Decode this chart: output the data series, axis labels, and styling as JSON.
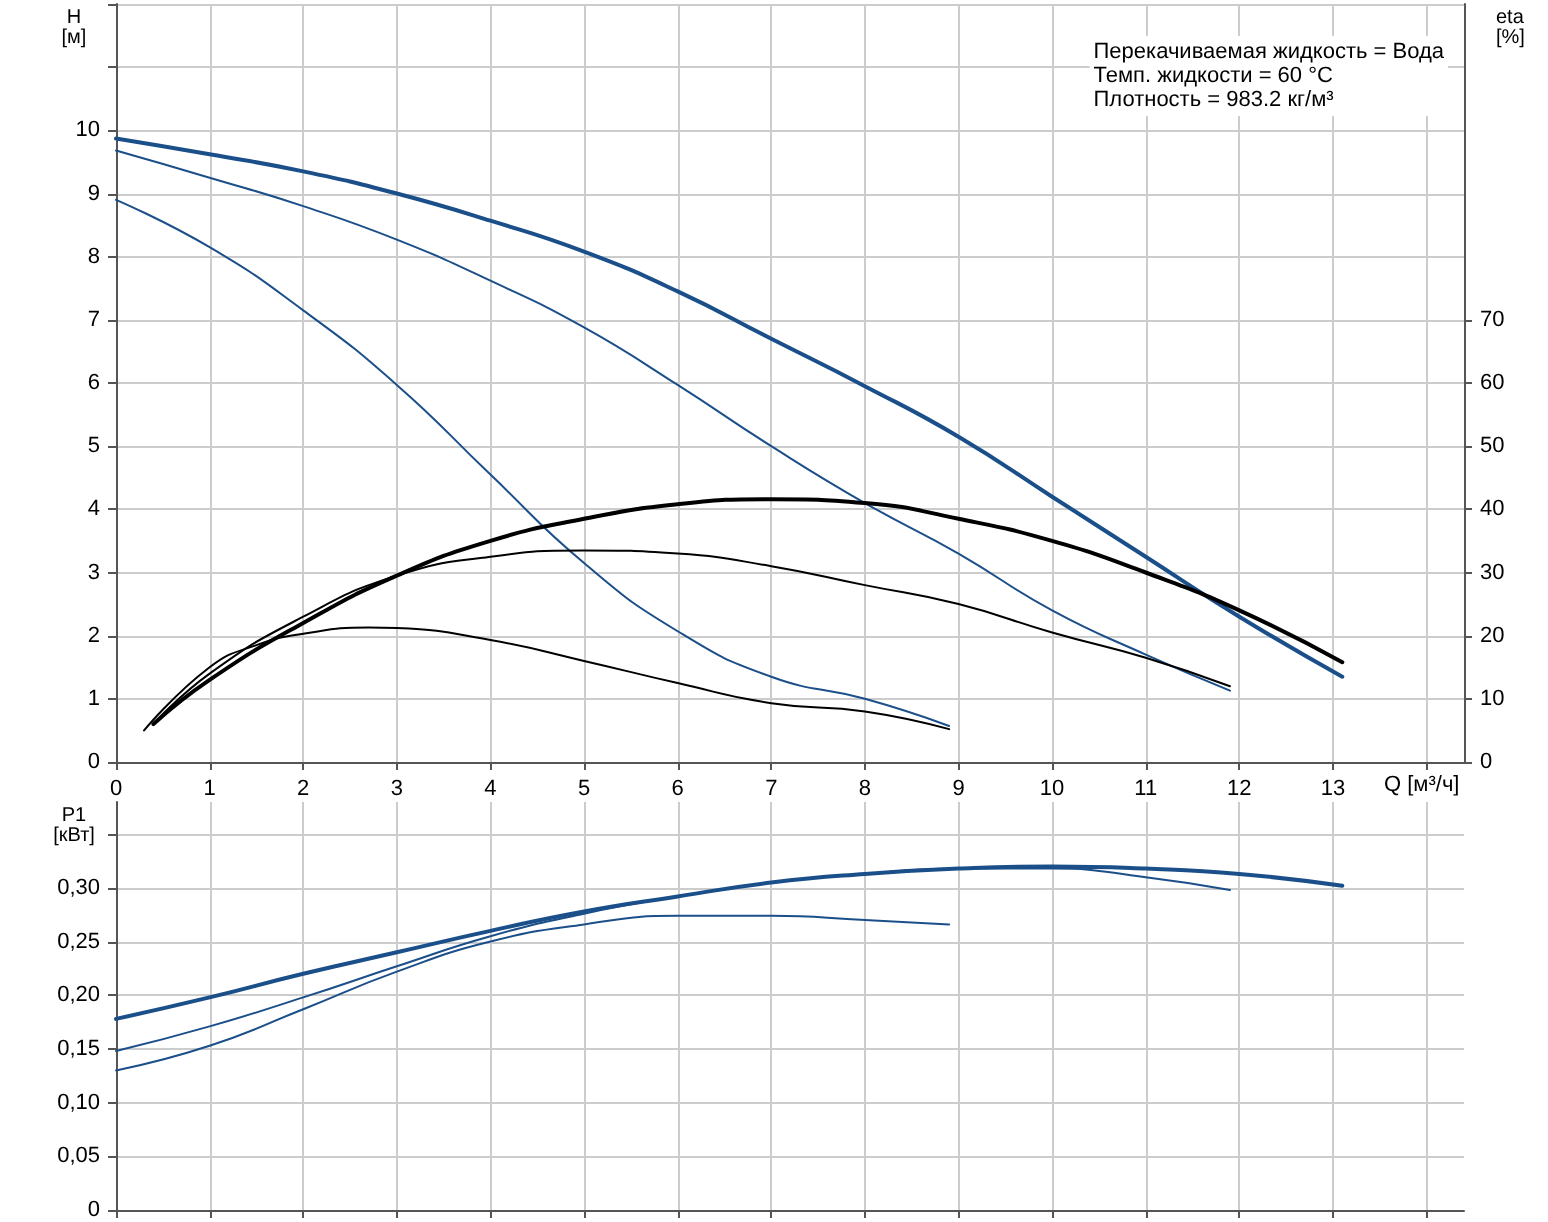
{
  "chart_data": [
    {
      "type": "line",
      "xlabel": "Q [м³/ч]",
      "ylabel": "H [м]",
      "y2label": "eta [%]",
      "annotations": [
        "Перекачиваемая жидкость = Вода",
        "Темп. жидкости = 60 °C",
        "Плотность = 983.2 кг/м³"
      ],
      "xlim": [
        0,
        14.4
      ],
      "xticks": [
        0,
        1,
        2,
        3,
        4,
        5,
        6,
        7,
        8,
        9,
        10,
        11,
        12,
        13,
        {
          "value": 14,
          "label": null
        }
      ],
      "ylim": [
        0,
        12
      ],
      "yticks": [
        0,
        1,
        2,
        3,
        4,
        5,
        6,
        7,
        8,
        9,
        10,
        {
          "value": 11,
          "label": null
        },
        {
          "value": 12,
          "label": null
        }
      ],
      "y2lim": [
        0,
        120
      ],
      "y2ticks": [
        0,
        10,
        20,
        30,
        40,
        50,
        60,
        70
      ],
      "grid": true,
      "marker": "none",
      "line_style": "solid",
      "series": [
        {
          "color": "#1b4f8a",
          "x": [
            0,
            1,
            2,
            3,
            4,
            5,
            6,
            7,
            8,
            9,
            10,
            11,
            12,
            13.1
          ],
          "values": [
            9.87,
            9.62,
            9.35,
            9.0,
            8.57,
            8.08,
            7.45,
            6.7,
            5.95,
            5.15,
            4.2,
            3.25,
            2.3,
            1.35
          ]
        },
        {
          "color": "#1b4f8a",
          "x": [
            0,
            1,
            2,
            3,
            4,
            5,
            6,
            7,
            8,
            9,
            10,
            11,
            11.9
          ],
          "values": [
            9.68,
            9.25,
            8.8,
            8.27,
            7.62,
            6.88,
            5.97,
            5.0,
            4.1,
            3.3,
            2.4,
            1.7,
            1.13
          ]
        },
        {
          "color": "#1b4f8a",
          "x": [
            0,
            1,
            2,
            3,
            4,
            5,
            6,
            7,
            8,
            8.9
          ],
          "values": [
            8.9,
            8.15,
            7.15,
            5.97,
            4.55,
            3.15,
            2.07,
            1.35,
            1.0,
            0.57
          ]
        },
        {
          "color": "#000000",
          "axis": "y2",
          "x": [
            0.4,
            1,
            2,
            3,
            4,
            5,
            6,
            7,
            8,
            9,
            10,
            11,
            12,
            13.1
          ],
          "values": [
            6,
            13,
            22,
            29.5,
            35,
            38.5,
            40.8,
            41.6,
            41,
            38.5,
            35,
            30,
            24,
            15.8
          ]
        },
        {
          "color": "#000000",
          "axis": "y2",
          "x": [
            0.4,
            1,
            2,
            3,
            4,
            5,
            6,
            7,
            8,
            9,
            10,
            11,
            11.9
          ],
          "values": [
            6,
            14,
            23,
            29.5,
            32.5,
            33.5,
            33,
            31,
            28,
            25,
            20.5,
            16.5,
            12
          ]
        },
        {
          "color": "#000000",
          "axis": "y2",
          "x": [
            0.3,
            1,
            1.5,
            2,
            2.7,
            3,
            4,
            5,
            6,
            7,
            8,
            8.9
          ],
          "values": [
            5,
            15,
            18.5,
            20.3,
            21.3,
            21.2,
            19.3,
            16,
            12.5,
            9.3,
            8,
            5.2
          ]
        }
      ]
    },
    {
      "type": "line",
      "ylabel": "P1 [кВт]",
      "tick_labels": "y",
      "xlim": [
        0,
        14.4
      ],
      "xticks": [
        0,
        1,
        2,
        3,
        4,
        5,
        6,
        7,
        8,
        9,
        10,
        11,
        12,
        13,
        14
      ],
      "ylim": [
        0,
        0.38
      ],
      "yticks": [
        0,
        {
          "value": 0.05,
          "label": "0,05"
        },
        {
          "value": 0.1,
          "label": "0,10"
        },
        {
          "value": 0.15,
          "label": "0,15"
        },
        {
          "value": 0.2,
          "label": "0,20"
        },
        {
          "value": 0.25,
          "label": "0,25"
        },
        {
          "value": 0.3,
          "label": "0,30"
        },
        {
          "value": 0.35,
          "label": null
        }
      ],
      "grid": true,
      "marker": "none",
      "line_style": "solid",
      "series": [
        {
          "color": "#1b4f8a",
          "x": [
            0,
            1,
            2,
            3,
            4,
            5,
            6,
            7,
            8,
            9,
            10,
            11,
            12,
            13.1
          ],
          "values": [
            0.178,
            0.198,
            0.22,
            0.24,
            0.26,
            0.278,
            0.292,
            0.305,
            0.313,
            0.318,
            0.32,
            0.318,
            0.313,
            0.302
          ]
        },
        {
          "color": "#1b4f8a",
          "x": [
            0,
            1,
            2,
            3,
            4,
            5,
            6,
            7,
            8,
            9,
            10,
            11,
            11.9
          ],
          "values": [
            0.148,
            0.171,
            0.198,
            0.227,
            0.255,
            0.276,
            0.292,
            0.305,
            0.313,
            0.318,
            0.318,
            0.31,
            0.298
          ]
        },
        {
          "color": "#1b4f8a",
          "x": [
            0,
            1,
            2,
            3,
            4,
            5,
            6,
            7,
            8,
            8.9
          ],
          "values": [
            0.13,
            0.153,
            0.187,
            0.222,
            0.25,
            0.266,
            0.274,
            0.274,
            0.27,
            0.266
          ]
        }
      ]
    }
  ]
}
